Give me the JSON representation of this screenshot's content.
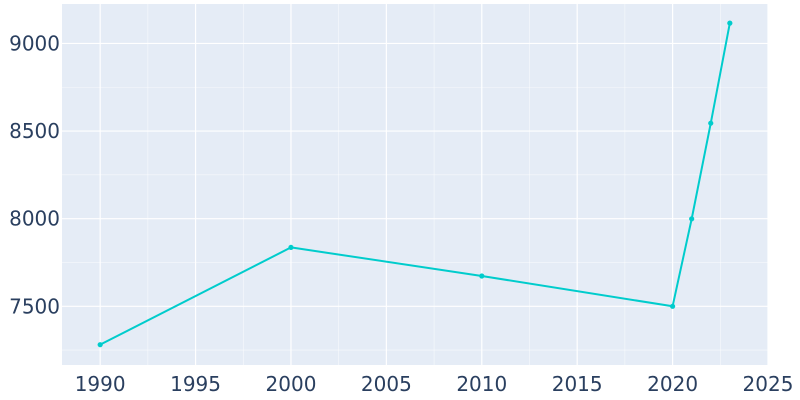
{
  "chart_data": {
    "type": "line",
    "title": "",
    "xlabel": "",
    "ylabel": "",
    "x": [
      1990,
      2000,
      2010,
      2020,
      2021,
      2022,
      2023
    ],
    "series": [
      {
        "values": [
          7281,
          7836,
          7673,
          7500,
          7999,
          8545,
          9116
        ]
      }
    ],
    "xlim": [
      1988,
      2025
    ],
    "ylim": [
      7165,
      9225
    ],
    "xticks": [
      1990,
      1995,
      2000,
      2005,
      2010,
      2015,
      2020,
      2025
    ],
    "yticks": [
      7500,
      8000,
      8500,
      9000
    ],
    "grid": true,
    "colors": {
      "line": "#00cccc",
      "plot_bg": "#e5ecf6",
      "grid": "#ffffff",
      "tick_text": "#2a3f5f"
    }
  }
}
